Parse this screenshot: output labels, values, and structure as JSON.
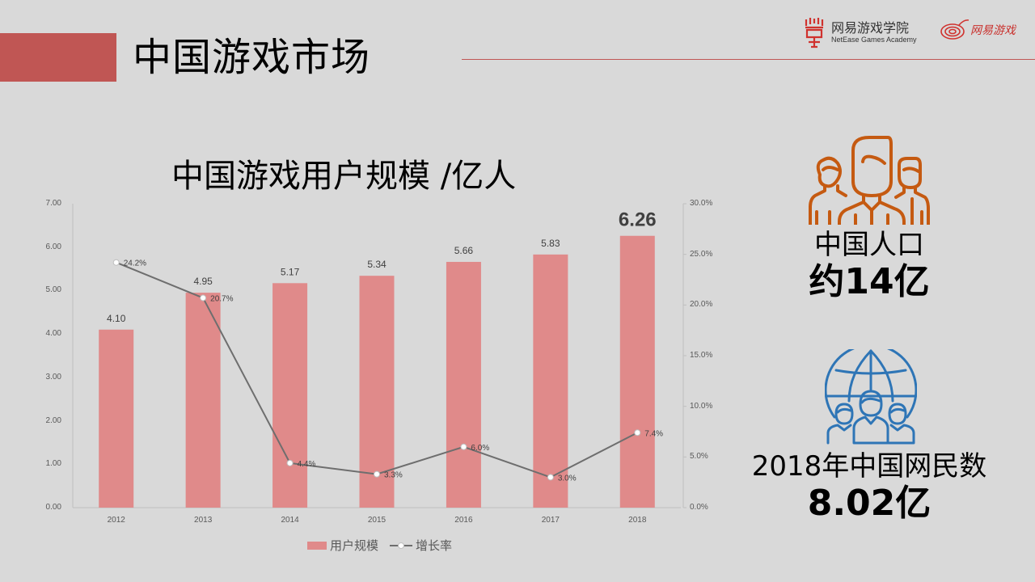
{
  "header": {
    "title": "中国游戏市场",
    "accent_color": "#c05654",
    "logo_academy": {
      "name": "网易游戏学院",
      "subtitle": "NetEase Games Academy"
    },
    "logo_games": {
      "name": "网易游戏"
    }
  },
  "chart_title": "中国游戏用户规模 /亿人",
  "chart_data": {
    "type": "bar",
    "title": "中国游戏用户规模 /亿人",
    "categories": [
      "2012",
      "2013",
      "2014",
      "2015",
      "2016",
      "2017",
      "2018"
    ],
    "series": [
      {
        "name": "用户规模",
        "type": "bar",
        "axis": "left",
        "color": "#e08a8a",
        "values": [
          4.1,
          4.95,
          5.17,
          5.34,
          5.66,
          5.83,
          6.26
        ],
        "labels": [
          "4.10",
          "4.95",
          "5.17",
          "5.34",
          "5.66",
          "5.83",
          "6.26"
        ]
      },
      {
        "name": "增长率",
        "type": "line",
        "axis": "right",
        "color": "#6e6e6e",
        "values": [
          24.2,
          20.7,
          4.4,
          3.3,
          6.0,
          3.0,
          7.4
        ],
        "labels": [
          "24.2%",
          "20.7%",
          "4.4%",
          "3.3%",
          "6.0%",
          "3.0%",
          "7.4%"
        ]
      }
    ],
    "ylim": [
      0,
      7
    ],
    "y_ticks": [
      "0.00",
      "1.00",
      "2.00",
      "3.00",
      "4.00",
      "5.00",
      "6.00",
      "7.00"
    ],
    "y2lim": [
      0,
      30
    ],
    "y2_ticks": [
      "0.0%",
      "5.0%",
      "10.0%",
      "15.0%",
      "20.0%",
      "25.0%",
      "30.0%"
    ],
    "xlabel": "",
    "ylabel": "",
    "y2label": "",
    "legend_position": "bottom",
    "grid": false
  },
  "legend": {
    "bar_label": "用户规模",
    "line_label": "增长率"
  },
  "stats": {
    "population": {
      "label": "中国人口",
      "value": "约14亿",
      "icon_color": "#c55a11"
    },
    "netizens": {
      "label": "2018年中国网民数",
      "value": "8.02亿",
      "icon_color": "#2e75b6"
    }
  }
}
